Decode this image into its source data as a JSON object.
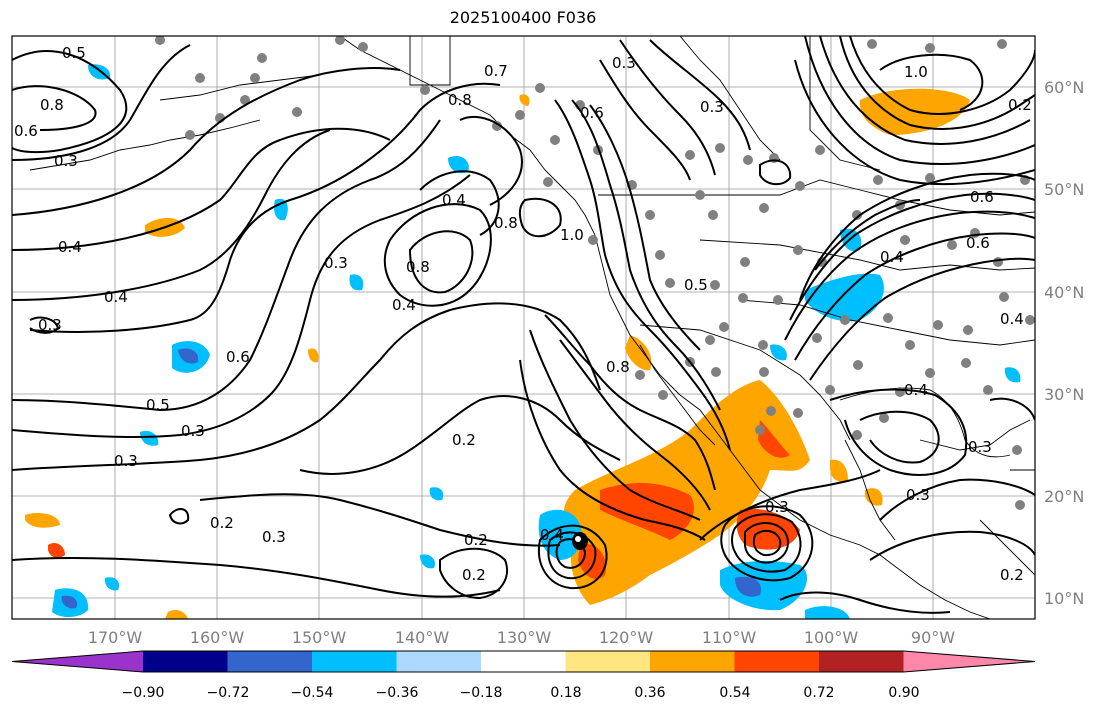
{
  "title": "2025100400 F036",
  "map": {
    "lon_range": [
      -180,
      -80
    ],
    "lat_range": [
      8,
      65
    ],
    "lon_ticks": [
      "170°W",
      "160°W",
      "150°W",
      "140°W",
      "130°W",
      "120°W",
      "110°W",
      "100°W",
      "90°W"
    ],
    "lat_ticks": [
      "10°N",
      "20°N",
      "30°N",
      "40°N",
      "50°N",
      "60°N"
    ]
  },
  "colorbar": {
    "ticks": [
      "−0.90",
      "−0.72",
      "−0.54",
      "−0.36",
      "−0.18",
      "0.18",
      "0.36",
      "0.54",
      "0.72",
      "0.90"
    ],
    "colors": [
      "#9933cc",
      "#00008b",
      "#3366cc",
      "#00bfff",
      "#add8ff",
      "#ffffff",
      "#ffe680",
      "#ffa500",
      "#ff4500",
      "#b22222",
      "#ff88aa"
    ]
  },
  "contour_labels": [
    "0.3",
    "0.4",
    "0.4",
    "0.3",
    "0.5",
    "0.3",
    "0.3",
    "0.6",
    "0.2",
    "0.3",
    "0.3",
    "0.4",
    "0.8",
    "0.4",
    "0.8",
    "0.8",
    "1.0",
    "0.7",
    "0.6",
    "0.3",
    "0.5",
    "0.2",
    "0.2",
    "0.2",
    "0.8",
    "0.4",
    "0.3",
    "1.0",
    "0.6",
    "0.4",
    "0.6",
    "0.3",
    "0.4",
    "0.3",
    "0.2",
    "0.3",
    "0.2",
    "0.6",
    "0.8",
    "0.5",
    "0.4"
  ]
}
